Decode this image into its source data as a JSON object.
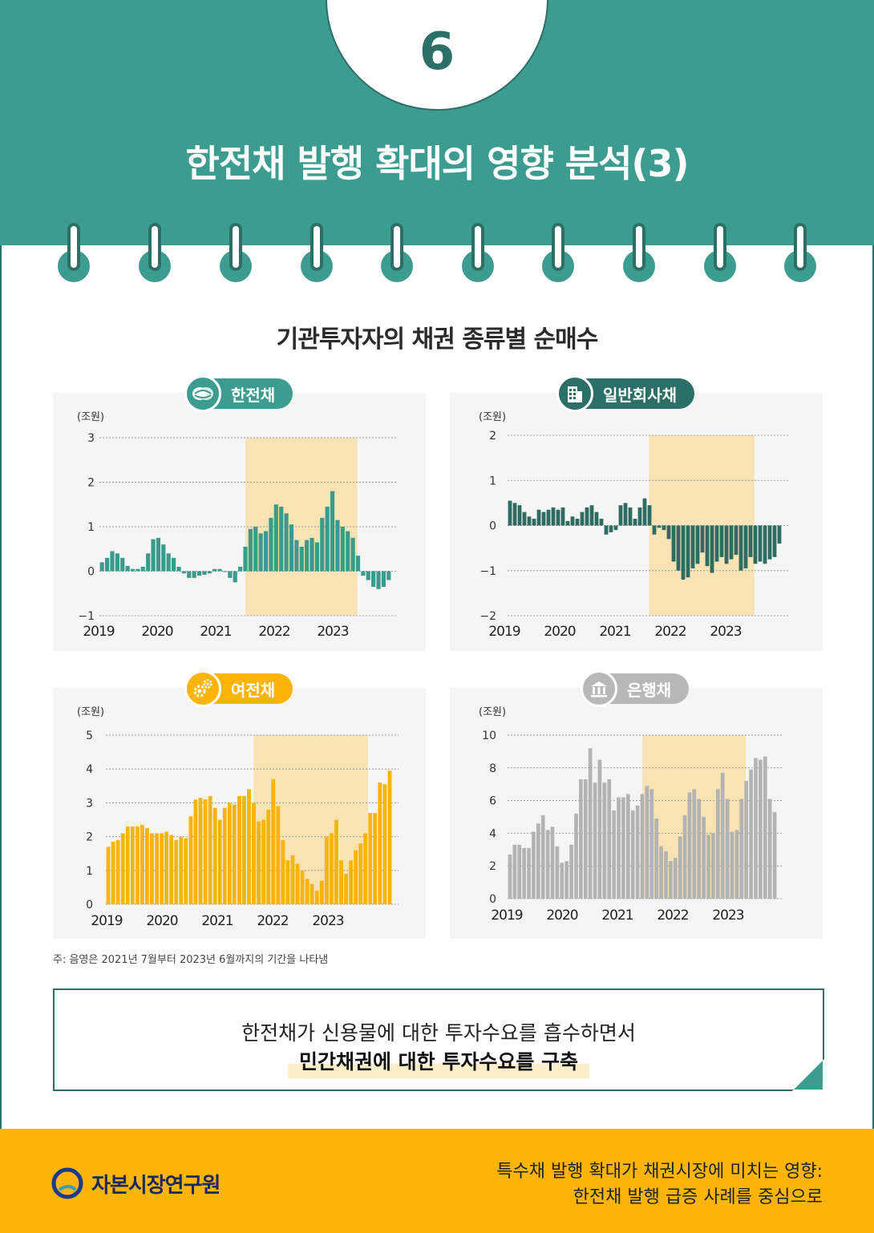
{
  "header": {
    "number": "6",
    "title": "한전채 발행 확대의 영향 분석(3)"
  },
  "section_title": "기관투자자의 채권 종류별 순매수",
  "colors": {
    "teal": "#3d9c90",
    "dark_teal": "#2c6f67",
    "kepco_bar": "#3a9b8c",
    "corp_bar": "#2d6b63",
    "card_bar": "#fbb40a",
    "bank_bar": "#b3b3b3",
    "highlight": "#f8e3b4",
    "footer": "#fbb40a"
  },
  "chart_data": [
    {
      "type": "bar",
      "badge": "한전채",
      "unit": "(조원)",
      "x_ticks": [
        "2019",
        "2020",
        "2021",
        "2022",
        "2023"
      ],
      "x_start": 2019.0,
      "x_end": 2024.0,
      "ylim": [
        -1,
        3
      ],
      "y_ticks": [
        "3",
        "2",
        "1",
        "0",
        "−1"
      ],
      "highlight": [
        2021.5,
        2023.42
      ],
      "values": [
        0.2,
        0.3,
        0.45,
        0.4,
        0.3,
        0.12,
        0.05,
        0.05,
        0.1,
        0.4,
        0.72,
        0.75,
        0.6,
        0.4,
        0.3,
        0.1,
        -0.05,
        -0.15,
        -0.15,
        -0.1,
        -0.08,
        -0.05,
        0.05,
        0.05,
        0,
        -0.15,
        -0.25,
        0.1,
        0.55,
        0.95,
        1.0,
        0.85,
        0.9,
        1.2,
        1.5,
        1.45,
        1.3,
        1.05,
        0.7,
        0.55,
        0.7,
        0.75,
        0.65,
        1.2,
        1.45,
        1.8,
        1.15,
        1.0,
        0.9,
        0.75,
        0.35,
        -0.1,
        -0.2,
        -0.35,
        -0.4,
        -0.35,
        -0.2
      ]
    },
    {
      "type": "bar",
      "badge": "일반회사채",
      "unit": "(조원)",
      "x_ticks": [
        "2019",
        "2020",
        "2021",
        "2022",
        "2023"
      ],
      "x_start": 2019.0,
      "x_end": 2024.0,
      "ylim": [
        -2,
        2
      ],
      "y_ticks": [
        "2",
        "1",
        "0",
        "−1",
        "−2"
      ],
      "highlight": [
        2021.58,
        2023.5
      ],
      "values": [
        0.55,
        0.5,
        0.45,
        0.3,
        0.2,
        0.15,
        0.35,
        0.3,
        0.35,
        0.4,
        0.35,
        0.4,
        0.1,
        0.2,
        0.15,
        0.3,
        0.4,
        0.45,
        0.3,
        0.15,
        -0.2,
        -0.15,
        -0.1,
        0.45,
        0.5,
        0.4,
        0.15,
        0.4,
        0.6,
        0.45,
        -0.2,
        -0.05,
        -0.1,
        -0.3,
        -0.8,
        -1.0,
        -1.2,
        -1.15,
        -0.95,
        -0.85,
        -0.6,
        -0.9,
        -1.05,
        -0.8,
        -0.7,
        -0.85,
        -0.75,
        -0.65,
        -1.0,
        -0.95,
        -0.7,
        -0.85,
        -0.8,
        -0.85,
        -0.75,
        -0.7,
        -0.4
      ]
    },
    {
      "type": "bar",
      "badge": "여전채",
      "unit": "(조원)",
      "x_ticks": [
        "2019",
        "2020",
        "2021",
        "2022",
        "2023"
      ],
      "x_start": 2019.0,
      "x_end": 2024.0,
      "ylim": [
        0,
        5
      ],
      "y_ticks": [
        "5",
        "4",
        "3",
        "2",
        "1",
        "0"
      ],
      "highlight": [
        2021.58,
        2023.58
      ],
      "values": [
        1.7,
        1.85,
        1.9,
        2.1,
        2.3,
        2.3,
        2.3,
        2.35,
        2.25,
        2.1,
        2.1,
        2.1,
        2.15,
        2.05,
        1.9,
        2.0,
        1.95,
        2.6,
        3.1,
        3.15,
        3.1,
        3.2,
        2.85,
        2.5,
        2.85,
        3.0,
        2.95,
        3.2,
        3.2,
        3.4,
        3.0,
        2.45,
        2.5,
        2.8,
        3.7,
        2.9,
        1.9,
        1.3,
        1.45,
        1.2,
        1.0,
        0.75,
        0.6,
        0.4,
        0.7,
        2.0,
        2.1,
        2.5,
        1.3,
        0.9,
        1.3,
        1.6,
        1.8,
        2.1,
        2.7,
        2.7,
        3.6,
        3.55,
        3.95
      ]
    },
    {
      "type": "bar",
      "badge": "은행채",
      "unit": "(조원)",
      "x_ticks": [
        "2019",
        "2020",
        "2021",
        "2022",
        "2023"
      ],
      "x_start": 2019.0,
      "x_end": 2024.0,
      "ylim": [
        0,
        10
      ],
      "y_ticks": [
        "10",
        "8",
        "6",
        "4",
        "2",
        "0"
      ],
      "highlight": [
        2021.5,
        2023.42
      ],
      "values": [
        2.7,
        3.3,
        3.3,
        3.1,
        3.1,
        4.1,
        4.6,
        5.1,
        4.2,
        4.4,
        3.2,
        2.2,
        2.3,
        3.3,
        5.2,
        7.3,
        7.3,
        9.2,
        7.1,
        8.5,
        7.1,
        7.3,
        5.4,
        6.2,
        6.2,
        6.4,
        5.4,
        5.7,
        6.4,
        6.9,
        6.7,
        4.9,
        3.2,
        2.9,
        2.3,
        2.5,
        3.8,
        5.1,
        6.5,
        6.7,
        6.1,
        5.0,
        3.9,
        4.0,
        6.7,
        7.7,
        6.1,
        4.1,
        4.2,
        6.1,
        7.2,
        7.9,
        8.6,
        8.5,
        8.7,
        6.1,
        5.3
      ]
    }
  ],
  "note": "주: 음영은 2021년 7월부터 2023년 6월까지의 기간을 나타냄",
  "callout": {
    "line1": "한전채가 신용물에 대한 투자수요를 흡수하면서",
    "line2": "민간채권에 대한 투자수요를 구축"
  },
  "footer": {
    "logo_text": "자본시장연구원",
    "line1": "특수채 발행 확대가  채권시장에 미치는 영향:",
    "line2": "한전채 발행 급증 사례를 중심으로"
  }
}
